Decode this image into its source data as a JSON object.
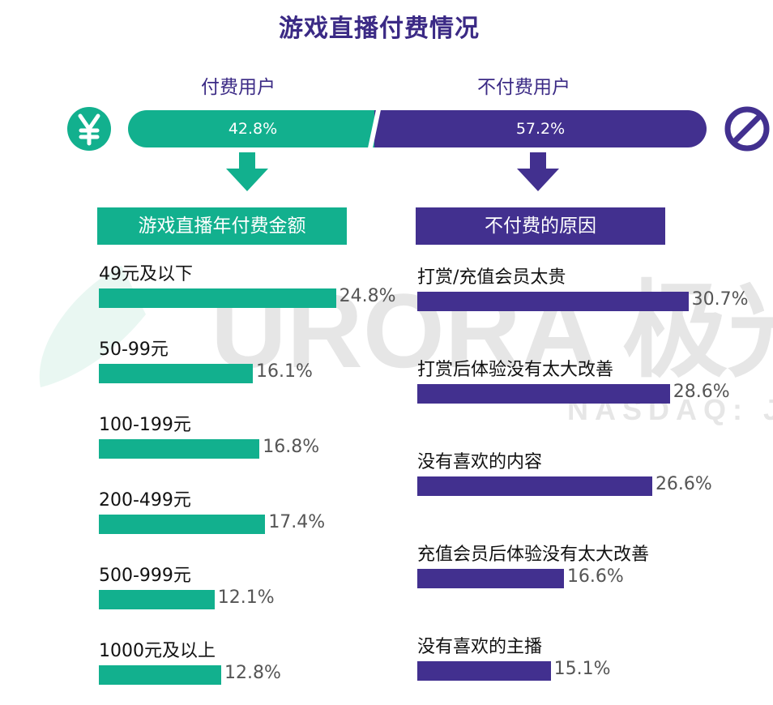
{
  "title": "游戏直播付费情况",
  "colors": {
    "paid": "#12b08e",
    "unpaid": "#42308f",
    "title": "#3b2a85"
  },
  "split": {
    "paid_label": "付费用户",
    "unpaid_label": "不付费用户",
    "paid_value": "42.8%",
    "unpaid_value": "57.2%"
  },
  "icons": {
    "paid": "yen-icon",
    "unpaid": "prohibited-icon",
    "arrow": "down-arrow-icon"
  },
  "watermark": {
    "main": "URORA 极光",
    "sub": "NASDAQ: J"
  },
  "chart_data": [
    {
      "type": "bar",
      "orientation": "horizontal",
      "title": "游戏直播年付费金额",
      "categories": [
        "49元及以下",
        "50-99元",
        "100-199元",
        "200-499元",
        "500-999元",
        "1000元及以上"
      ],
      "values": [
        24.8,
        16.1,
        16.8,
        17.4,
        12.1,
        12.8
      ],
      "value_labels": [
        "24.8%",
        "16.1%",
        "16.8%",
        "17.4%",
        "12.1%",
        "12.8%"
      ],
      "xlim": [
        0,
        35
      ]
    },
    {
      "type": "bar",
      "orientation": "horizontal",
      "title": "不付费的原因",
      "categories": [
        "打赏/充值会员太贵",
        "打赏后体验没有太大改善",
        "没有喜欢的内容",
        "充值会员后体验没有太大改善",
        "没有喜欢的主播"
      ],
      "values": [
        30.7,
        28.6,
        26.6,
        16.6,
        15.1
      ],
      "value_labels": [
        "30.7%",
        "28.6%",
        "26.6%",
        "16.6%",
        "15.1%"
      ],
      "xlim": [
        0,
        35
      ]
    }
  ]
}
